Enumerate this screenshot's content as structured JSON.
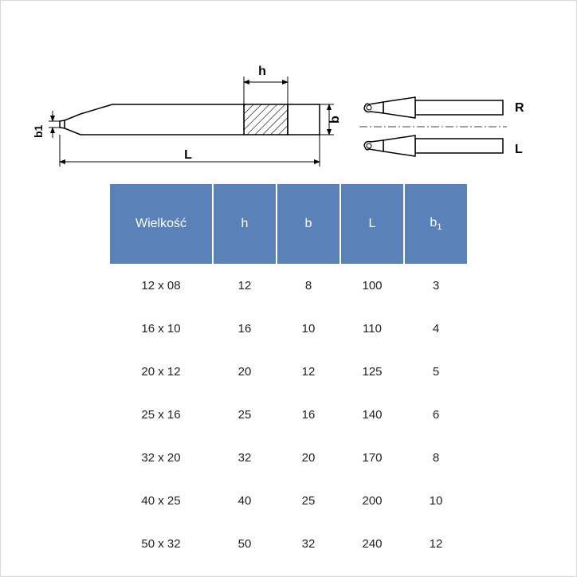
{
  "diagram": {
    "labels": {
      "h": "h",
      "b": "b",
      "L": "L",
      "b1": "b1",
      "R": "R",
      "Lside": "L"
    },
    "stroke": "#000000",
    "hatch": "#000000",
    "text_color": "#000000"
  },
  "table": {
    "header_bg": "#5b82b8",
    "header_fg": "#ffffff",
    "cell_fg": "#222222",
    "columns": [
      {
        "key": "wielkosc",
        "label": "Wielkość"
      },
      {
        "key": "h",
        "label": "h"
      },
      {
        "key": "b",
        "label": "b"
      },
      {
        "key": "L",
        "label": "L"
      },
      {
        "key": "b1",
        "label": "b",
        "sub": "1"
      }
    ],
    "rows": [
      {
        "wielkosc": "12 x 08",
        "h": "12",
        "b": "8",
        "L": "100",
        "b1": "3"
      },
      {
        "wielkosc": "16 x 10",
        "h": "16",
        "b": "10",
        "L": "110",
        "b1": "4"
      },
      {
        "wielkosc": "20 x 12",
        "h": "20",
        "b": "12",
        "L": "125",
        "b1": "5"
      },
      {
        "wielkosc": "25 x 16",
        "h": "25",
        "b": "16",
        "L": "140",
        "b1": "6"
      },
      {
        "wielkosc": "32 x 20",
        "h": "32",
        "b": "20",
        "L": "170",
        "b1": "8"
      },
      {
        "wielkosc": "40 x 25",
        "h": "40",
        "b": "25",
        "L": "200",
        "b1": "10"
      },
      {
        "wielkosc": "50 x 32",
        "h": "50",
        "b": "32",
        "L": "240",
        "b1": "12"
      }
    ]
  }
}
